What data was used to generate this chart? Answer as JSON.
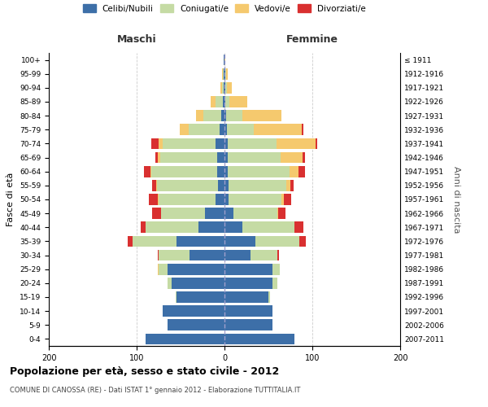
{
  "age_groups": [
    "0-4",
    "5-9",
    "10-14",
    "15-19",
    "20-24",
    "25-29",
    "30-34",
    "35-39",
    "40-44",
    "45-49",
    "50-54",
    "55-59",
    "60-64",
    "65-69",
    "70-74",
    "75-79",
    "80-84",
    "85-89",
    "90-94",
    "95-99",
    "100+"
  ],
  "birth_years": [
    "2007-2011",
    "2002-2006",
    "1997-2001",
    "1992-1996",
    "1987-1991",
    "1982-1986",
    "1977-1981",
    "1972-1976",
    "1967-1971",
    "1962-1966",
    "1957-1961",
    "1952-1956",
    "1947-1951",
    "1942-1946",
    "1937-1941",
    "1932-1936",
    "1927-1931",
    "1922-1926",
    "1917-1921",
    "1912-1916",
    "≤ 1911"
  ],
  "male": {
    "celibi": [
      90,
      65,
      70,
      55,
      60,
      65,
      40,
      55,
      30,
      22,
      10,
      7,
      8,
      8,
      10,
      6,
      4,
      2,
      1,
      1,
      1
    ],
    "coniugati": [
      0,
      0,
      0,
      1,
      5,
      10,
      35,
      50,
      60,
      50,
      65,
      70,
      75,
      65,
      60,
      35,
      20,
      8,
      2,
      1,
      0
    ],
    "vedovi": [
      0,
      0,
      0,
      0,
      0,
      1,
      0,
      0,
      0,
      0,
      1,
      1,
      1,
      3,
      5,
      10,
      8,
      6,
      2,
      1,
      0
    ],
    "divorziati": [
      0,
      0,
      0,
      0,
      0,
      0,
      1,
      5,
      5,
      10,
      10,
      4,
      8,
      3,
      8,
      0,
      0,
      0,
      0,
      0,
      0
    ]
  },
  "female": {
    "nubili": [
      80,
      55,
      55,
      50,
      55,
      55,
      30,
      35,
      20,
      10,
      5,
      5,
      4,
      4,
      4,
      3,
      2,
      1,
      1,
      1,
      0
    ],
    "coniugate": [
      0,
      0,
      0,
      2,
      5,
      8,
      30,
      50,
      60,
      50,
      60,
      65,
      70,
      60,
      55,
      30,
      18,
      5,
      2,
      1,
      0
    ],
    "vedove": [
      0,
      0,
      0,
      0,
      0,
      0,
      0,
      0,
      0,
      1,
      3,
      5,
      10,
      25,
      45,
      55,
      45,
      20,
      5,
      2,
      1
    ],
    "divorziate": [
      0,
      0,
      0,
      0,
      0,
      0,
      2,
      8,
      10,
      8,
      8,
      4,
      8,
      3,
      2,
      2,
      0,
      0,
      0,
      0,
      0
    ]
  },
  "colors": {
    "celibi": "#3d6fa8",
    "coniugati": "#c5dba4",
    "vedovi": "#f5c96e",
    "divorziati": "#d93030"
  },
  "xlim": 200,
  "title": "Popolazione per età, sesso e stato civile - 2012",
  "subtitle": "COMUNE DI CANOSSA (RE) - Dati ISTAT 1° gennaio 2012 - Elaborazione TUTTITALIA.IT",
  "ylabel": "Fasce di età",
  "ylabel_right": "Anni di nascita",
  "xlabel_maschi": "Maschi",
  "xlabel_femmine": "Femmine",
  "legend_labels": [
    "Celibi/Nubili",
    "Coniugati/e",
    "Vedovi/e",
    "Divorziati/e"
  ],
  "background_color": "#ffffff",
  "grid_color": "#cccccc"
}
